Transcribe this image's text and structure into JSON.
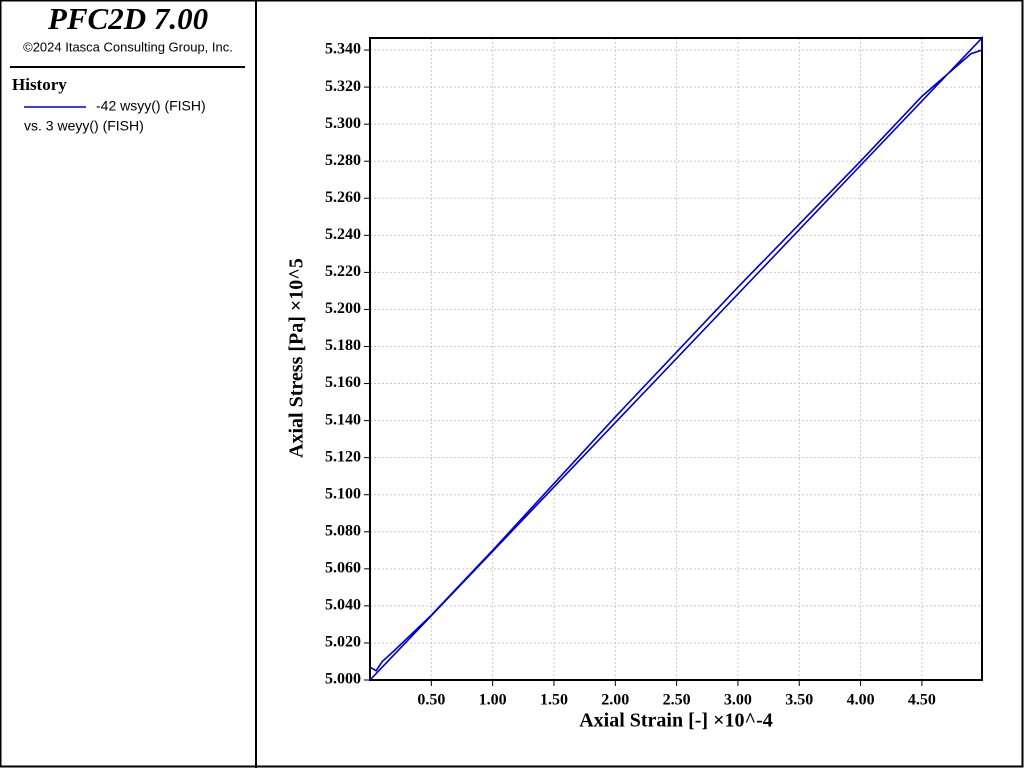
{
  "panel": {
    "title": "PFC2D 7.00",
    "copyright": "©2024 Itasca Consulting Group, Inc.",
    "heading": "History",
    "vs": "vs. 3 weyy() (FISH)"
  },
  "chart_data": {
    "type": "line",
    "x_label": "Axial Strain [-] ×10^-4",
    "y_label": "Axial Stress [Pa] ×10^5",
    "x": [
      0,
      4.99,
      4.99,
      4.9,
      4.5,
      4.0,
      3.5,
      3.0,
      2.5,
      2.0,
      1.5,
      1.0,
      0.5,
      0.2,
      0.1,
      0.05,
      0
    ],
    "series": [
      {
        "name": "-42 wsyy() (FISH)",
        "color": "#0000cc",
        "values": [
          5.0,
          5.3465,
          5.34,
          5.338,
          5.315,
          5.28,
          5.246,
          5.212,
          5.177,
          5.142,
          5.106,
          5.07,
          5.035,
          5.016,
          5.01,
          5.005,
          5.007
        ]
      }
    ],
    "xlim": [
      0,
      4.99
    ],
    "ylim": [
      5.0,
      5.3465
    ],
    "xticks": [
      {
        "value": 0.5,
        "label": "0.50"
      },
      {
        "value": 1.0,
        "label": "1.00"
      },
      {
        "value": 1.5,
        "label": "1.50"
      },
      {
        "value": 2.0,
        "label": "2.00"
      },
      {
        "value": 2.5,
        "label": "2.50"
      },
      {
        "value": 3.0,
        "label": "3.00"
      },
      {
        "value": 3.5,
        "label": "3.50"
      },
      {
        "value": 4.0,
        "label": "4.00"
      },
      {
        "value": 4.5,
        "label": "4.50"
      }
    ],
    "yticks": [
      {
        "value": 5.0,
        "label": "5.000"
      },
      {
        "value": 5.02,
        "label": "5.020"
      },
      {
        "value": 5.04,
        "label": "5.040"
      },
      {
        "value": 5.06,
        "label": "5.060"
      },
      {
        "value": 5.08,
        "label": "5.080"
      },
      {
        "value": 5.1,
        "label": "5.100"
      },
      {
        "value": 5.12,
        "label": "5.120"
      },
      {
        "value": 5.14,
        "label": "5.140"
      },
      {
        "value": 5.16,
        "label": "5.160"
      },
      {
        "value": 5.18,
        "label": "5.180"
      },
      {
        "value": 5.2,
        "label": "5.200"
      },
      {
        "value": 5.22,
        "label": "5.220"
      },
      {
        "value": 5.24,
        "label": "5.240"
      },
      {
        "value": 5.26,
        "label": "5.260"
      },
      {
        "value": 5.28,
        "label": "5.280"
      },
      {
        "value": 5.3,
        "label": "5.300"
      },
      {
        "value": 5.32,
        "label": "5.320"
      },
      {
        "value": 5.34,
        "label": "5.340"
      }
    ],
    "grid": true
  }
}
